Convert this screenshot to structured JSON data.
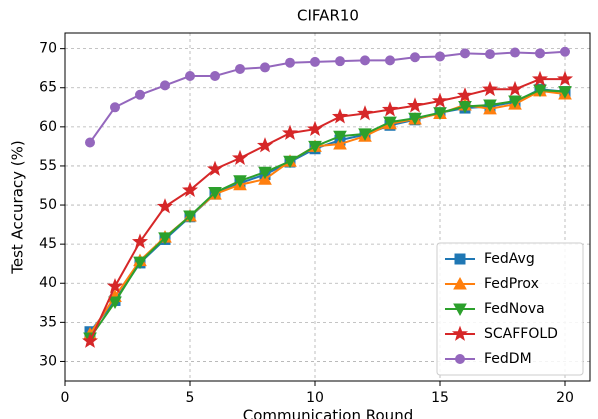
{
  "chart_data": {
    "type": "line",
    "title": "CIFAR10",
    "x_label": "Communication Round",
    "y_label": "Test Accuracy (%)",
    "x": [
      1,
      2,
      3,
      4,
      5,
      6,
      7,
      8,
      9,
      10,
      11,
      12,
      13,
      14,
      15,
      16,
      17,
      18,
      19,
      20
    ],
    "series": [
      {
        "name": "FedAvg",
        "color": "#1f77b4",
        "marker": "square",
        "values": [
          33.8,
          37.8,
          42.6,
          45.6,
          48.5,
          51.4,
          52.8,
          53.9,
          55.5,
          57.2,
          58.3,
          59.0,
          60.2,
          60.9,
          61.8,
          62.4,
          62.6,
          63.2,
          64.8,
          64.5
        ]
      },
      {
        "name": "FedProx",
        "color": "#ff7f0e",
        "marker": "triangle-up",
        "values": [
          33.5,
          38.3,
          42.9,
          45.9,
          48.6,
          51.4,
          52.6,
          53.3,
          55.6,
          57.5,
          57.8,
          58.8,
          60.4,
          61.0,
          61.7,
          62.8,
          62.3,
          62.9,
          64.6,
          64.2
        ]
      },
      {
        "name": "FedNova",
        "color": "#2ca02c",
        "marker": "triangle-down",
        "values": [
          33.0,
          37.6,
          42.7,
          45.8,
          48.6,
          51.6,
          53.1,
          54.2,
          55.6,
          57.5,
          58.8,
          59.1,
          60.6,
          61.1,
          61.8,
          62.6,
          62.8,
          63.3,
          64.7,
          64.5
        ]
      },
      {
        "name": "SCAFFOLD",
        "color": "#d62728",
        "marker": "star",
        "values": [
          32.6,
          39.6,
          45.3,
          49.8,
          51.9,
          54.6,
          56.0,
          57.6,
          59.2,
          59.7,
          61.3,
          61.7,
          62.2,
          62.7,
          63.3,
          64.0,
          64.8,
          64.8,
          66.1,
          66.1
        ]
      },
      {
        "name": "FedDM",
        "color": "#9467bd",
        "marker": "circle",
        "values": [
          58.0,
          62.5,
          64.1,
          65.3,
          66.5,
          66.5,
          67.4,
          67.6,
          68.2,
          68.3,
          68.4,
          68.5,
          68.5,
          68.9,
          69.0,
          69.4,
          69.3,
          69.5,
          69.4,
          69.6
        ]
      }
    ],
    "xlim": [
      0,
      21
    ],
    "ylim": [
      27.5,
      72
    ],
    "xticks": [
      0,
      5,
      10,
      15,
      20
    ],
    "yticks": [
      30,
      35,
      40,
      45,
      50,
      55,
      60,
      65,
      70
    ],
    "grid": true,
    "legend": "lower right"
  }
}
